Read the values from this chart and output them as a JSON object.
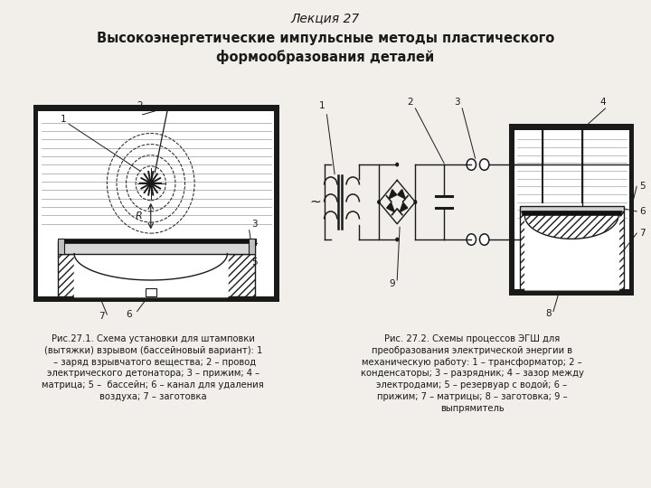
{
  "title": "Лекция 27",
  "subtitle": "Высокоэнергетические импульсные методы пластического\nформообразования деталей",
  "bg_color": "#f2efea",
  "fig1_caption": "Рис.27.1. Схема установки для штамповки\n(вытяжки) взрывом (бассейновый вариант): 1\n – заряд взрывчатого вещества; 2 – провод\nэлектрического детонатора; 3 – прижим; 4 –\nматрица; 5 –  бассейн; 6 – канал для удаления\nвоздуха; 7 – заготовка",
  "fig2_caption": "Рис. 27.2. Схемы процессов ЭГШ для\nпреобразования электрической энергии в\nмеханическую работу: 1 – трансформатор; 2 –\nконденсаторы; 3 – разрядник; 4 – зазор между\nэлектродами; 5 – резервуар с водой; 6 –\nприжим; 7 – матрицы; 8 – заготовка; 9 –\nвыпрямитель",
  "line_color": "#1a1a1a",
  "water_line_color": "#999999"
}
